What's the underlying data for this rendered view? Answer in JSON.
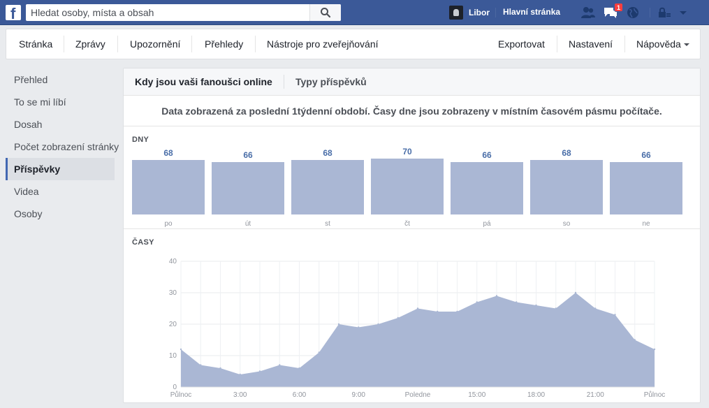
{
  "topbar": {
    "logo": "f",
    "search_placeholder": "Hledat osoby, místa a obsah",
    "user_name": "Libor",
    "home_label": "Hlavní stránka",
    "notification_count": "1",
    "accent": "#3b5998"
  },
  "subnav": {
    "left": [
      "Stránka",
      "Zprávy",
      "Upozornění",
      "Přehledy",
      "Nástroje pro zveřejňování"
    ],
    "right": [
      "Exportovat",
      "Nastavení",
      "Nápověda"
    ]
  },
  "leftnav": {
    "items": [
      "Přehled",
      "To se mi líbí",
      "Dosah",
      "Počet zobrazení stránky",
      "Příspěvky",
      "Videa",
      "Osoby"
    ],
    "active_index": 4
  },
  "tabs": [
    "Kdy jsou vaši fanoušci online",
    "Typy příspěvků"
  ],
  "notice": "Data zobrazená za poslední 1týdenní období. Časy dne jsou zobrazeny v místním časovém pásmu počítače.",
  "days": {
    "label": "DNY",
    "chart_data": {
      "type": "bar",
      "categories": [
        "po",
        "út",
        "st",
        "čt",
        "pá",
        "so",
        "ne"
      ],
      "values": [
        68,
        66,
        68,
        70,
        66,
        68,
        66
      ],
      "ylim": [
        0,
        70
      ]
    }
  },
  "hours": {
    "label": "ČASY",
    "chart_data": {
      "type": "area",
      "x": [
        0,
        1,
        2,
        3,
        4,
        5,
        6,
        7,
        8,
        9,
        10,
        11,
        12,
        13,
        14,
        15,
        16,
        17,
        18,
        19,
        20,
        21,
        22,
        23,
        24
      ],
      "values": [
        12,
        7,
        6,
        4,
        5,
        7,
        6,
        11,
        20,
        19,
        20,
        22,
        25,
        24,
        24,
        27,
        29,
        27,
        26,
        25,
        30,
        25,
        23,
        15,
        12
      ],
      "ylim": [
        0,
        40
      ],
      "yticks": [
        0,
        10,
        20,
        30,
        40
      ],
      "xtick_hours": [
        0,
        3,
        6,
        9,
        12,
        15,
        18,
        21,
        24
      ],
      "xtick_labels": [
        "Půlnoc",
        "3:00",
        "6:00",
        "9:00",
        "Poledne",
        "15:00",
        "18:00",
        "21:00",
        "Půlnoc"
      ],
      "fill_color": "#aab7d4"
    }
  }
}
